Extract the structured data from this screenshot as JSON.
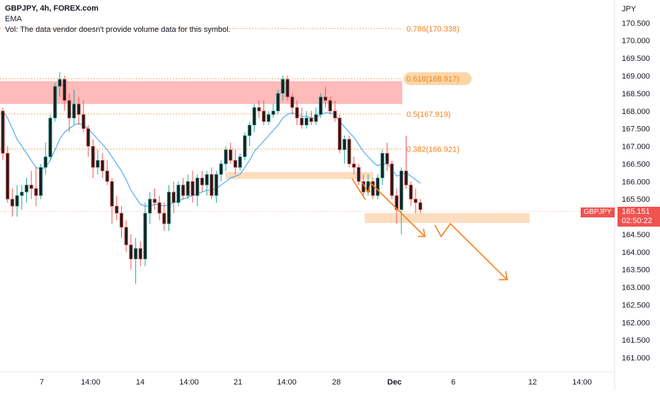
{
  "legend": {
    "symbol": "GBPJPY, 4h, FOREX.com",
    "indicator": "EMA",
    "volume_note": "Vol: The data vendor doesn't provide volume data for this symbol."
  },
  "currency_label": "JPY",
  "last_price": {
    "symbol": "GBPJPY",
    "price": "165.151",
    "countdown": "02:50:22",
    "color": "#ef5350"
  },
  "colors": {
    "up": "#26a69a",
    "down": "#ef5350",
    "candle_body": "#1e1e1e",
    "ema": "#2196f3",
    "fib": "#f57f17",
    "resistance_zone": "#ffb3b3",
    "support_zone": "#fcd9b8",
    "projection": "#f57f17"
  },
  "chart_data": {
    "type": "candlestick",
    "symbol": "GBPJPY",
    "timeframe": "4h",
    "y_axis": {
      "ylim": [
        160.6,
        171.15
      ],
      "ticks": [
        "161.000",
        "161.500",
        "162.000",
        "162.500",
        "163.000",
        "163.500",
        "164.000",
        "164.500",
        "165.000",
        "165.500",
        "166.000",
        "166.500",
        "167.000",
        "167.500",
        "168.000",
        "168.500",
        "169.000",
        "169.500",
        "170.000",
        "170.500"
      ]
    },
    "x_axis": {
      "ticks": [
        "7",
        "14:00",
        "14",
        "14:00",
        "21",
        "14:00",
        "28",
        "Dec",
        "6",
        "12",
        "14:00"
      ],
      "bold_ticks": [
        "Dec"
      ]
    },
    "fibonacci": [
      {
        "label": "0.786(170.338)",
        "price": 170.338
      },
      {
        "label": "0.618(168.917)",
        "price": 168.917,
        "highlighted": true
      },
      {
        "label": "0.5(167.919)",
        "price": 167.919
      },
      {
        "label": "0.382(166.921)",
        "price": 166.921
      }
    ],
    "zones": [
      {
        "name": "resistance",
        "from": 168.2,
        "to": 168.85
      },
      {
        "name": "support-mid",
        "from": 166.07,
        "to": 166.27
      },
      {
        "name": "support-target",
        "from": 164.82,
        "to": 165.1
      }
    ],
    "candles": [
      [
        168.0,
        168.1,
        166.6,
        166.8
      ],
      [
        166.8,
        167.0,
        165.4,
        165.5
      ],
      [
        165.5,
        165.8,
        165.0,
        165.3
      ],
      [
        165.3,
        165.9,
        165.0,
        165.6
      ],
      [
        165.6,
        165.9,
        165.2,
        165.7
      ],
      [
        165.7,
        166.1,
        165.4,
        165.9
      ],
      [
        165.9,
        166.3,
        165.5,
        165.8
      ],
      [
        165.8,
        166.4,
        165.3,
        165.6
      ],
      [
        165.6,
        166.5,
        165.5,
        166.4
      ],
      [
        166.4,
        167.1,
        166.2,
        166.7
      ],
      [
        166.7,
        167.9,
        166.6,
        167.8
      ],
      [
        167.8,
        168.8,
        167.7,
        168.7
      ],
      [
        168.7,
        169.1,
        168.4,
        168.9
      ],
      [
        168.9,
        169.0,
        168.0,
        168.3
      ],
      [
        168.3,
        168.5,
        167.4,
        167.8
      ],
      [
        167.8,
        168.6,
        167.6,
        168.2
      ],
      [
        168.2,
        168.4,
        167.6,
        167.9
      ],
      [
        167.9,
        168.3,
        167.4,
        167.5
      ],
      [
        167.5,
        167.6,
        166.7,
        167.0
      ],
      [
        167.0,
        167.2,
        166.1,
        166.4
      ],
      [
        166.4,
        166.9,
        166.2,
        166.6
      ],
      [
        166.6,
        166.8,
        166.1,
        166.3
      ],
      [
        166.3,
        166.6,
        165.9,
        166.0
      ],
      [
        166.0,
        166.1,
        164.8,
        165.3
      ],
      [
        165.3,
        165.6,
        164.9,
        165.1
      ],
      [
        165.1,
        165.3,
        164.4,
        164.7
      ],
      [
        164.7,
        164.9,
        164.0,
        164.2
      ],
      [
        164.2,
        164.5,
        163.5,
        163.8
      ],
      [
        163.8,
        164.4,
        163.1,
        164.1
      ],
      [
        164.1,
        164.3,
        163.6,
        163.8
      ],
      [
        163.8,
        165.4,
        163.6,
        165.1
      ],
      [
        165.1,
        165.7,
        164.8,
        165.5
      ],
      [
        165.5,
        165.8,
        165.2,
        165.4
      ],
      [
        165.4,
        165.6,
        164.9,
        165.1
      ],
      [
        165.1,
        165.4,
        164.6,
        164.8
      ],
      [
        164.8,
        165.9,
        164.6,
        165.7
      ],
      [
        165.7,
        166.0,
        165.1,
        165.4
      ],
      [
        165.4,
        166.0,
        165.3,
        165.9
      ],
      [
        165.9,
        166.1,
        165.5,
        165.6
      ],
      [
        165.6,
        166.2,
        165.5,
        166.0
      ],
      [
        166.0,
        166.3,
        165.4,
        165.6
      ],
      [
        165.6,
        166.2,
        165.3,
        166.1
      ],
      [
        166.1,
        166.3,
        165.7,
        165.9
      ],
      [
        165.9,
        166.3,
        165.6,
        166.2
      ],
      [
        166.2,
        166.4,
        165.5,
        165.6
      ],
      [
        165.6,
        166.3,
        165.4,
        166.2
      ],
      [
        166.2,
        166.6,
        166.0,
        166.5
      ],
      [
        166.5,
        167.0,
        166.3,
        166.9
      ],
      [
        166.9,
        167.1,
        166.5,
        166.6
      ],
      [
        166.6,
        166.9,
        166.2,
        166.4
      ],
      [
        166.4,
        166.8,
        166.3,
        166.7
      ],
      [
        166.7,
        167.4,
        166.6,
        167.3
      ],
      [
        167.3,
        167.7,
        167.0,
        167.6
      ],
      [
        167.6,
        168.2,
        167.4,
        168.1
      ],
      [
        168.1,
        168.3,
        167.8,
        168.0
      ],
      [
        168.0,
        168.3,
        167.6,
        167.7
      ],
      [
        167.7,
        168.0,
        167.6,
        167.9
      ],
      [
        167.9,
        168.2,
        167.8,
        168.0
      ],
      [
        168.0,
        168.6,
        167.9,
        168.5
      ],
      [
        168.5,
        169.0,
        168.3,
        168.9
      ],
      [
        168.9,
        169.0,
        168.3,
        168.4
      ],
      [
        168.4,
        168.5,
        167.9,
        168.1
      ],
      [
        168.1,
        168.3,
        167.6,
        167.8
      ],
      [
        167.8,
        168.1,
        167.5,
        167.6
      ],
      [
        167.6,
        168.0,
        167.5,
        167.8
      ],
      [
        167.8,
        168.0,
        167.6,
        167.7
      ],
      [
        167.7,
        168.1,
        167.6,
        167.9
      ],
      [
        167.9,
        168.5,
        167.8,
        168.4
      ],
      [
        168.4,
        168.7,
        168.1,
        168.3
      ],
      [
        168.3,
        168.4,
        167.9,
        168.0
      ],
      [
        168.0,
        168.3,
        167.7,
        167.8
      ],
      [
        167.8,
        167.9,
        166.8,
        166.9
      ],
      [
        166.9,
        167.3,
        166.5,
        167.2
      ],
      [
        167.2,
        167.3,
        166.4,
        166.5
      ],
      [
        166.5,
        166.7,
        166.2,
        166.4
      ],
      [
        166.4,
        166.5,
        165.9,
        166.0
      ],
      [
        166.0,
        166.2,
        165.6,
        165.7
      ],
      [
        165.7,
        166.2,
        165.6,
        166.0
      ],
      [
        166.0,
        166.1,
        165.5,
        165.6
      ],
      [
        165.6,
        166.2,
        165.5,
        166.1
      ],
      [
        166.1,
        166.9,
        165.9,
        166.8
      ],
      [
        166.8,
        167.1,
        166.3,
        166.5
      ],
      [
        166.5,
        166.6,
        165.5,
        165.6
      ],
      [
        165.6,
        165.8,
        164.8,
        165.2
      ],
      [
        165.2,
        166.4,
        164.5,
        166.3
      ],
      [
        166.3,
        167.3,
        165.8,
        165.9
      ],
      [
        165.9,
        166.0,
        165.3,
        165.5
      ],
      [
        165.5,
        165.8,
        165.1,
        165.4
      ],
      [
        165.4,
        165.5,
        165.1,
        165.2
      ]
    ],
    "ema": [
      168.0,
      167.8,
      167.5,
      167.2,
      167.0,
      166.8,
      166.6,
      166.4,
      166.35,
      166.4,
      166.6,
      166.9,
      167.2,
      167.4,
      167.5,
      167.6,
      167.65,
      167.6,
      167.5,
      167.35,
      167.2,
      167.05,
      166.9,
      166.7,
      166.5,
      166.3,
      166.05,
      165.75,
      165.55,
      165.35,
      165.3,
      165.3,
      165.35,
      165.35,
      165.3,
      165.35,
      165.4,
      165.45,
      165.5,
      165.55,
      165.6,
      165.65,
      165.7,
      165.75,
      165.75,
      165.8,
      165.9,
      166.0,
      166.1,
      166.15,
      166.2,
      166.4,
      166.6,
      166.85,
      167.0,
      167.15,
      167.3,
      167.45,
      167.6,
      167.8,
      167.9,
      167.95,
      167.9,
      167.85,
      167.85,
      167.8,
      167.8,
      167.9,
      167.95,
      167.95,
      167.9,
      167.7,
      167.55,
      167.4,
      167.25,
      167.05,
      166.85,
      166.7,
      166.55,
      166.45,
      166.5,
      166.5,
      166.35,
      166.15,
      166.2,
      166.25,
      166.15,
      166.05,
      165.95
    ]
  }
}
